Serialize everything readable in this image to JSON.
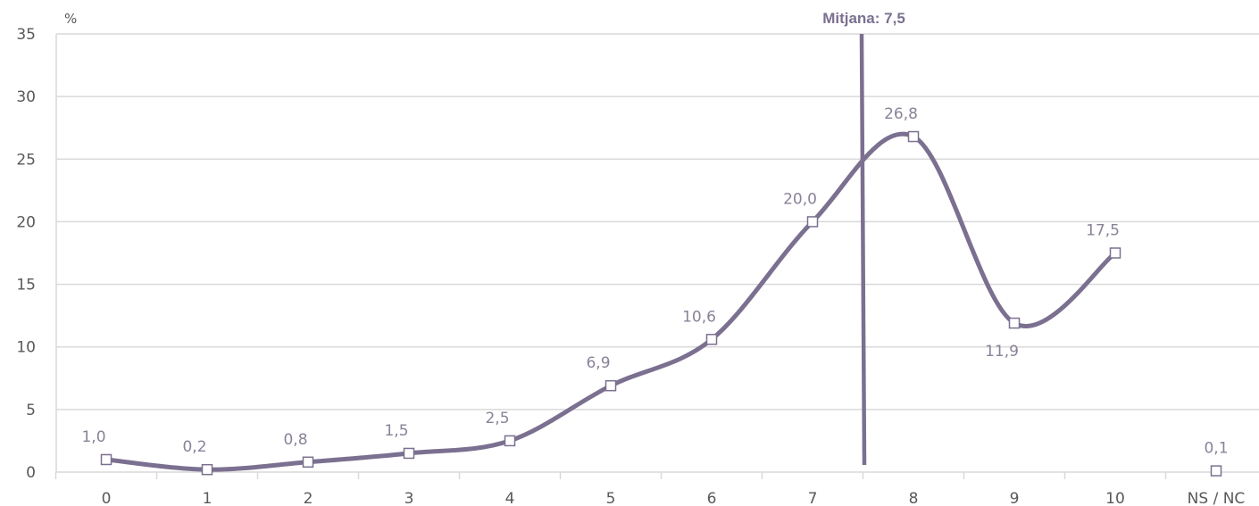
{
  "chart_data": {
    "type": "line",
    "ylabel": "%",
    "categories": [
      "0",
      "1",
      "2",
      "3",
      "4",
      "5",
      "6",
      "7",
      "8",
      "9",
      "10",
      "NS / NC"
    ],
    "series": [
      {
        "values": [
          1.0,
          0.2,
          0.8,
          1.5,
          2.5,
          6.9,
          10.6,
          20.0,
          26.8,
          11.9,
          17.5,
          null
        ]
      }
    ],
    "isolated_points": [
      {
        "category": "NS / NC",
        "value": 0.1,
        "label": "0,1"
      }
    ],
    "data_labels": [
      "1,0",
      "0,2",
      "0,8",
      "1,5",
      "2,5",
      "6,9",
      "10,6",
      "20,0",
      "26,8",
      "11,9",
      "17,5"
    ],
    "yticks": [
      0,
      5,
      10,
      15,
      20,
      25,
      30,
      35
    ],
    "ytick_labels": [
      "0",
      "5",
      "10",
      "15",
      "20",
      "25",
      "30",
      "35"
    ],
    "ylim": [
      0,
      35
    ],
    "grid": true,
    "smooth": true,
    "mean_line": {
      "value": 7.5,
      "label": "Mitjana: 7,5"
    },
    "colors": {
      "line": "#7b7090",
      "grid": "#d9d9d9",
      "marker_fill": "#ffffff"
    }
  }
}
